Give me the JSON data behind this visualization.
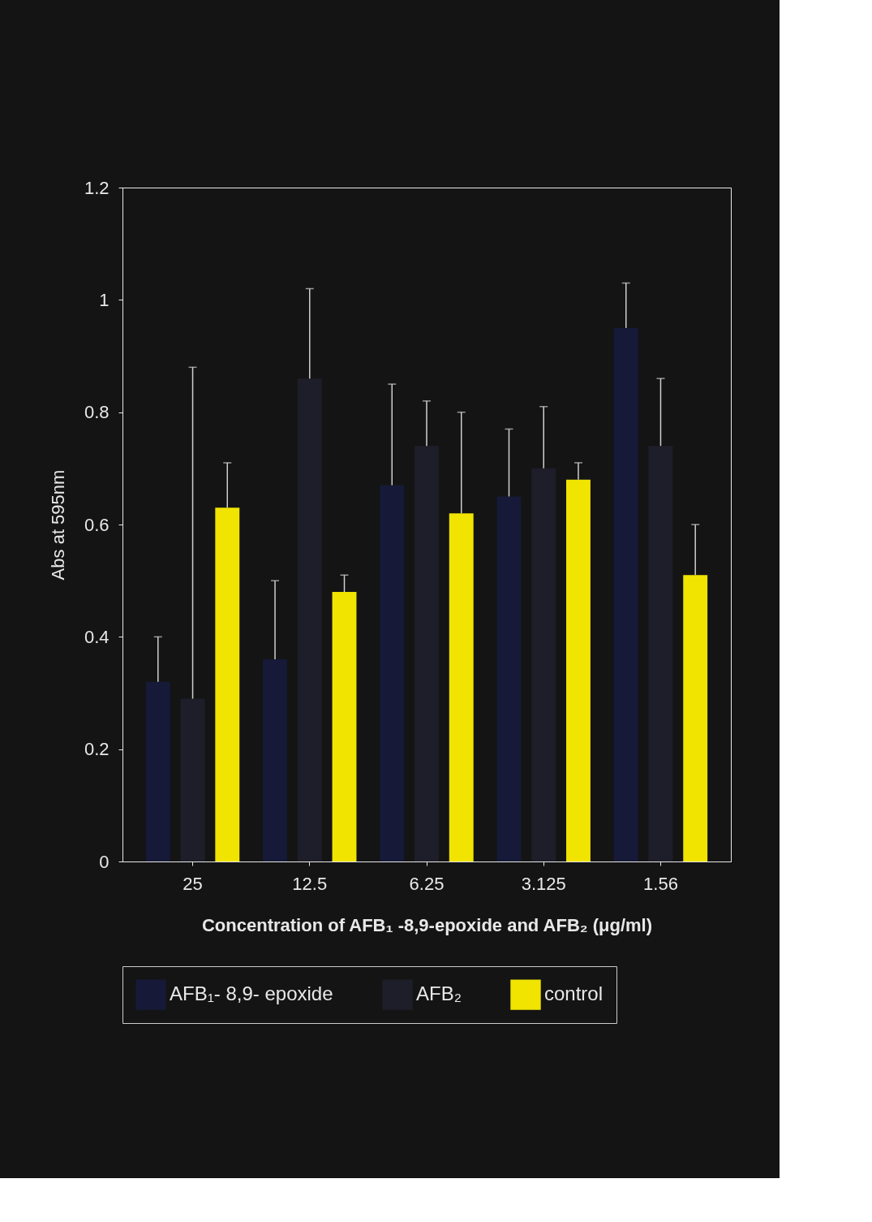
{
  "chart_data": {
    "type": "bar",
    "xlabel": "Concentration of AFB₁ -8,9-epoxide and AFB₂  (μg/ml)",
    "ylabel": "Abs at 595nm",
    "categories": [
      "25",
      "12.5",
      "6.25",
      "3.125",
      "1.56"
    ],
    "series": [
      {
        "name": "AFB₁- 8,9- epoxide",
        "color": "#161a38",
        "values": [
          0.32,
          0.36,
          0.67,
          0.65,
          0.95
        ],
        "errors": [
          [
            0.32,
            0.4
          ],
          [
            0.36,
            0.5
          ],
          [
            0.67,
            0.85
          ],
          [
            0.65,
            0.77
          ],
          [
            0.95,
            1.03
          ]
        ]
      },
      {
        "name": "AFB₂",
        "color": "#1e1e2a",
        "values": [
          0.29,
          0.86,
          0.74,
          0.7,
          0.74
        ],
        "errors": [
          [
            0.29,
            0.88
          ],
          [
            0.86,
            1.02
          ],
          [
            0.74,
            0.82
          ],
          [
            0.7,
            0.81
          ],
          [
            0.74,
            0.86
          ]
        ]
      },
      {
        "name": "control",
        "color": "#f0e400",
        "values": [
          0.63,
          0.48,
          0.62,
          0.68,
          0.51
        ],
        "errors": [
          [
            0.63,
            0.71
          ],
          [
            0.48,
            0.51
          ],
          [
            0.62,
            0.8
          ],
          [
            0.68,
            0.71
          ],
          [
            0.51,
            0.6
          ]
        ]
      }
    ],
    "ylim": [
      0,
      1.2
    ],
    "yticks": [
      0,
      0.2,
      0.4,
      0.6,
      0.8,
      1,
      1.2
    ],
    "grid": false,
    "legend": "bottom"
  }
}
